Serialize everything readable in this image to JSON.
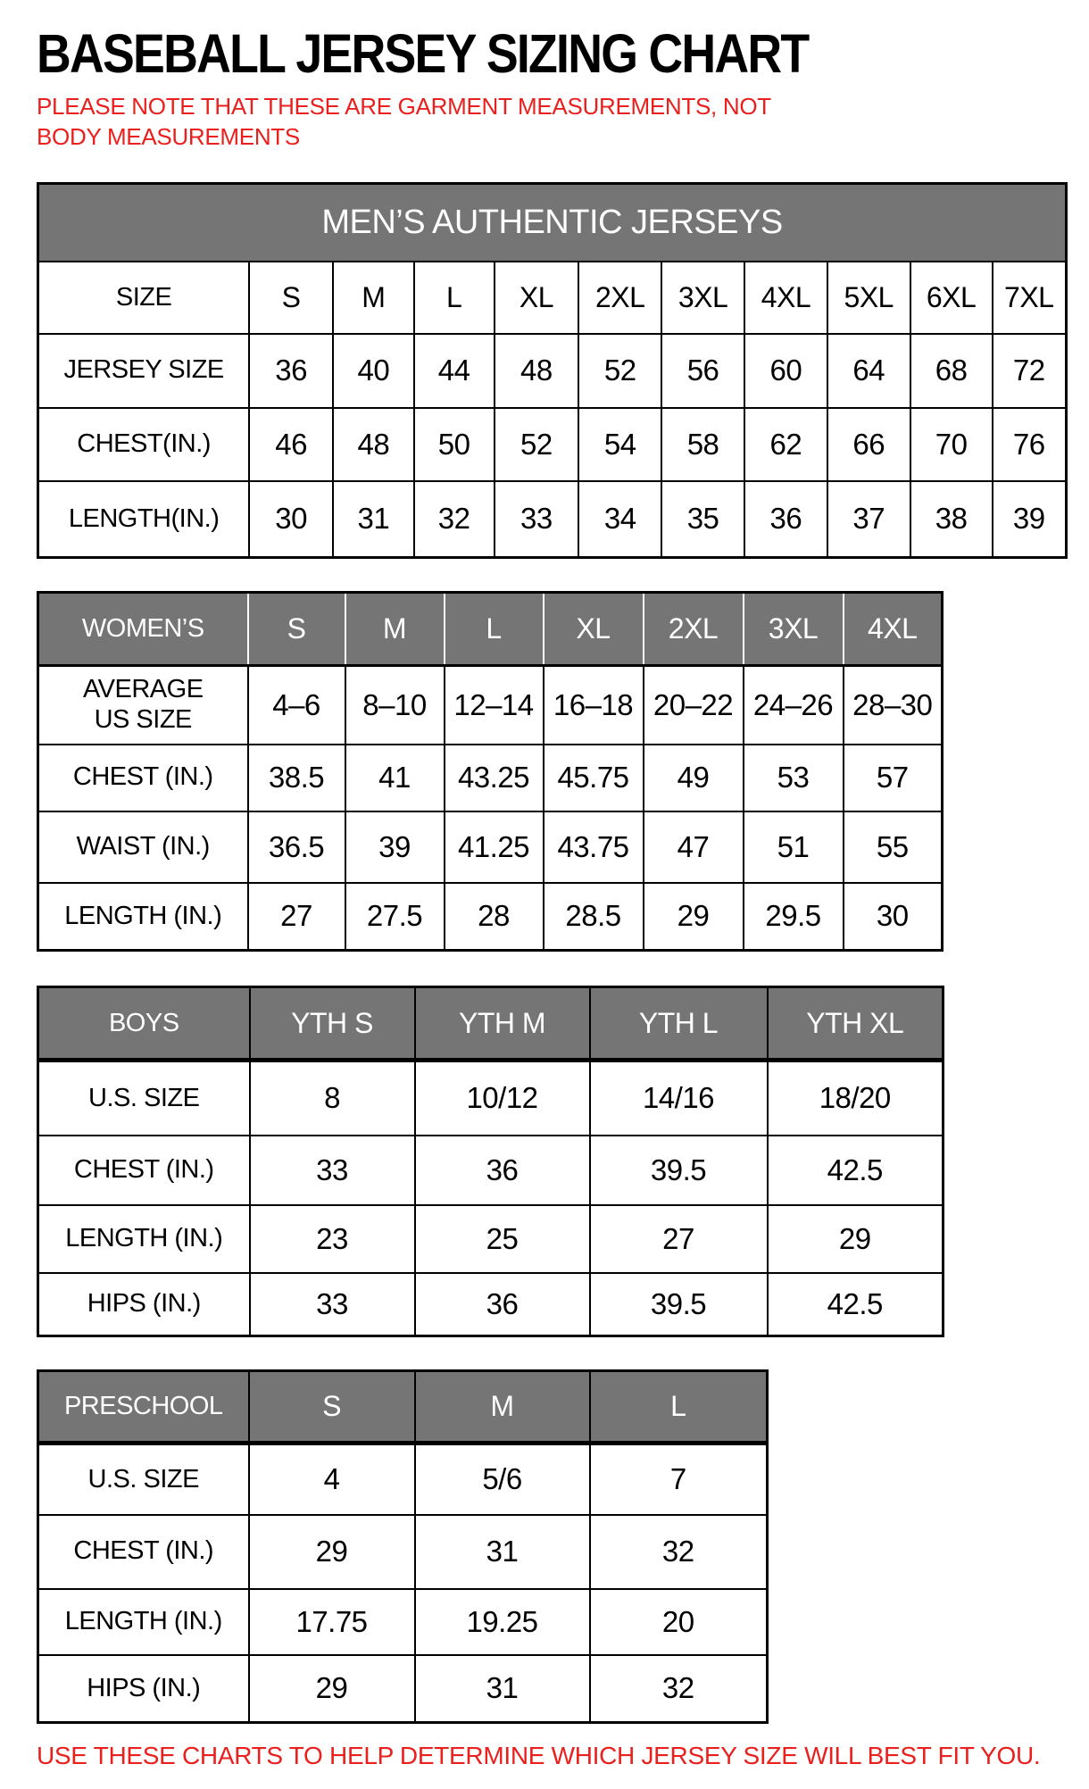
{
  "page": {
    "title": "BASEBALL JERSEY SIZING CHART",
    "note": "PLEASE NOTE THAT THESE ARE GARMENT MEASUREMENTS, NOT BODY MEASUREMENTS",
    "footer": "USE THESE CHARTS TO HELP DETERMINE WHICH JERSEY SIZE WILL BEST FIT YOU.",
    "colors": {
      "accent_red": "#e9201d",
      "header_gray": "#757575",
      "border_black": "#000000"
    }
  },
  "tables": {
    "mens": {
      "banner": "MEN’S AUTHENTIC JERSEYS",
      "header_gray": false,
      "columns": [
        "SIZE",
        "S",
        "M",
        "L",
        "XL",
        "2XL",
        "3XL",
        "4XL",
        "5XL",
        "6XL",
        "7XL"
      ],
      "rows": [
        {
          "label": "JERSEY SIZE",
          "values": [
            "36",
            "40",
            "44",
            "48",
            "52",
            "56",
            "60",
            "64",
            "68",
            "72"
          ]
        },
        {
          "label": "CHEST(IN.)",
          "values": [
            "46",
            "48",
            "50",
            "52",
            "54",
            "58",
            "62",
            "66",
            "70",
            "76"
          ]
        },
        {
          "label": "LENGTH(IN.)",
          "values": [
            "30",
            "31",
            "32",
            "33",
            "34",
            "35",
            "36",
            "37",
            "38",
            "39"
          ]
        }
      ]
    },
    "womens": {
      "banner": null,
      "header_gray": true,
      "columns": [
        "WOMEN’S",
        "S",
        "M",
        "L",
        "XL",
        "2XL",
        "3XL",
        "4XL"
      ],
      "rows": [
        {
          "label": "AVERAGE\nUS SIZE",
          "values": [
            "4–6",
            "8–10",
            "12–14",
            "16–18",
            "20–22",
            "24–26",
            "28–30"
          ]
        },
        {
          "label": "CHEST (IN.)",
          "values": [
            "38.5",
            "41",
            "43.25",
            "45.75",
            "49",
            "53",
            "57"
          ]
        },
        {
          "label": "WAIST (IN.)",
          "values": [
            "36.5",
            "39",
            "41.25",
            "43.75",
            "47",
            "51",
            "55"
          ]
        },
        {
          "label": "LENGTH (IN.)",
          "values": [
            "27",
            "27.5",
            "28",
            "28.5",
            "29",
            "29.5",
            "30"
          ]
        }
      ]
    },
    "boys": {
      "banner": null,
      "header_gray": true,
      "columns": [
        "BOYS",
        "YTH S",
        "YTH M",
        "YTH L",
        "YTH XL"
      ],
      "rows": [
        {
          "label": "U.S. SIZE",
          "values": [
            "8",
            "10/12",
            "14/16",
            "18/20"
          ]
        },
        {
          "label": "CHEST (IN.)",
          "values": [
            "33",
            "36",
            "39.5",
            "42.5"
          ]
        },
        {
          "label": "LENGTH (IN.)",
          "values": [
            "23",
            "25",
            "27",
            "29"
          ]
        },
        {
          "label": "HIPS (IN.)",
          "values": [
            "33",
            "36",
            "39.5",
            "42.5"
          ]
        }
      ]
    },
    "preschool": {
      "banner": null,
      "header_gray": true,
      "columns": [
        "PRESCHOOL",
        "S",
        "M",
        "L"
      ],
      "rows": [
        {
          "label": "U.S. SIZE",
          "values": [
            "4",
            "5/6",
            "7"
          ]
        },
        {
          "label": "CHEST (IN.)",
          "values": [
            "29",
            "31",
            "32"
          ]
        },
        {
          "label": "LENGTH (IN.)",
          "values": [
            "17.75",
            "19.25",
            "20"
          ]
        },
        {
          "label": "HIPS (IN.)",
          "values": [
            "29",
            "31",
            "32"
          ]
        }
      ]
    }
  }
}
